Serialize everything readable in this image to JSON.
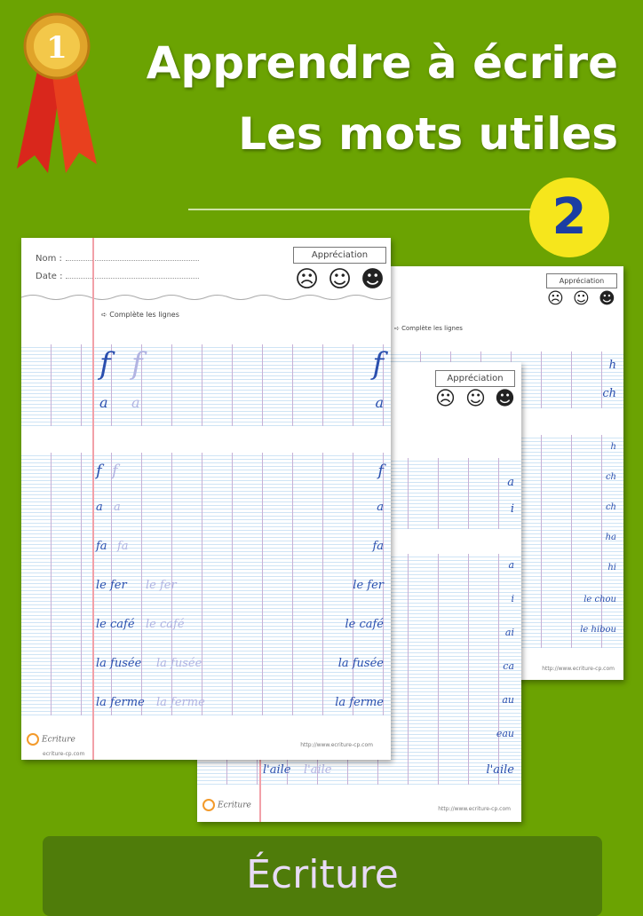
{
  "title_line1": "Apprendre à écrire",
  "title_line2": "Les mots utiles",
  "badge_number": "2",
  "medal_number": "1",
  "banner_label": "Écriture",
  "colors": {
    "background": "#6ba302",
    "banner": "#4f7c0a",
    "badge": "#f6e61c",
    "badge_text": "#1b3ea3",
    "ink": "#2a4fae"
  },
  "sheet_common": {
    "name_label": "Nom :",
    "date_label": "Date :",
    "appreciation": "Appréciation",
    "instruction": "➪ Complète les lignes",
    "logo_text": "Ecriture",
    "logo_sub": "ecriture-cp.com",
    "url": "http://www.ecriture-cp.com",
    "faces": [
      "sad-face-icon",
      "neutral-smile-icon",
      "big-smile-icon"
    ]
  },
  "front": {
    "model_letters": [
      "f",
      "a"
    ],
    "rows": [
      "f",
      "a",
      "fa",
      "le fer",
      "le café",
      "la fusée",
      "la ferme"
    ]
  },
  "middle": {
    "model_rows": [
      "a",
      "i"
    ],
    "rows": [
      "a",
      "i",
      "ai",
      "ca",
      "au",
      "eau",
      "l'aile"
    ]
  },
  "back": {
    "model_rows": [
      "h",
      "ch"
    ],
    "rows": [
      "h",
      "ch",
      "ch",
      "ha",
      "hi",
      "le chou",
      "le hibou"
    ]
  }
}
